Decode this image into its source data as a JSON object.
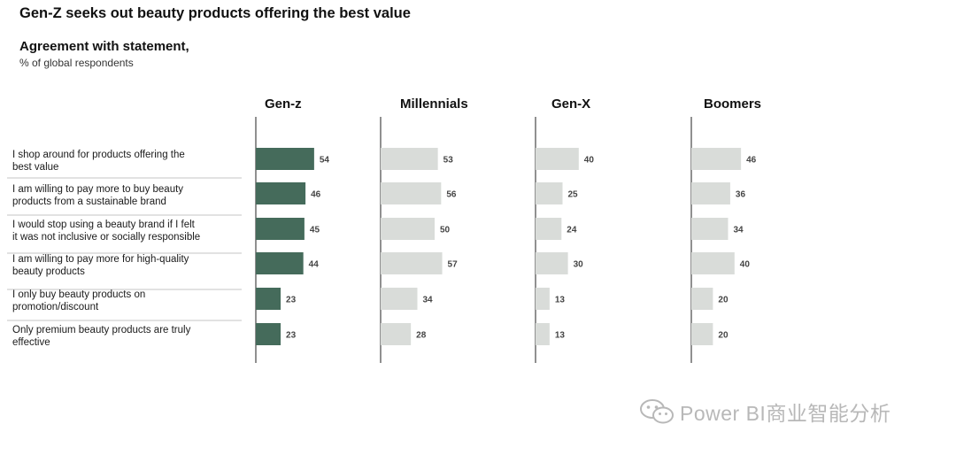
{
  "header": {
    "title": "Gen-Z seeks out beauty products offering the best value",
    "subtitle": "Agreement with statement,",
    "unit": "% of global respondents"
  },
  "watermark": {
    "text": "Power BI商业智能分析",
    "icon": "wechat-icon"
  },
  "chart_data": {
    "type": "bar",
    "orientation": "horizontal",
    "categories": [
      "I shop around for products offering the best value",
      "I am willing to pay more to buy beauty products from a sustainable brand",
      "I would stop using a beauty brand if I felt it was not inclusive or socially responsible",
      "I am willing  to pay more for high-quality beauty products",
      "I only buy beauty products on promotion/discount",
      "Only premium beauty products are truly effective"
    ],
    "category_lines": [
      [
        "I shop around for products offering the",
        "best value"
      ],
      [
        "I am willing to pay more to buy beauty",
        "products from a sustainable brand"
      ],
      [
        "I would stop using a beauty brand if I felt",
        "it was not inclusive or socially responsible"
      ],
      [
        "I am willing  to pay more for high-quality",
        "beauty products"
      ],
      [
        "I only buy beauty products on",
        "promotion/discount"
      ],
      [
        "Only premium beauty products are truly",
        "effective"
      ]
    ],
    "series": [
      {
        "name": "Gen-z",
        "values": [
          54,
          46,
          45,
          44,
          23,
          23
        ],
        "color": "#456b5b"
      },
      {
        "name": "Millennials",
        "values": [
          53,
          56,
          50,
          57,
          34,
          28
        ],
        "color": "#d9dcd9"
      },
      {
        "name": "Gen-X",
        "values": [
          40,
          25,
          24,
          30,
          13,
          13
        ],
        "color": "#d9dcd9"
      },
      {
        "name": "Boomers",
        "values": [
          46,
          36,
          34,
          40,
          20,
          20
        ],
        "color": "#d9dcd9"
      }
    ],
    "colors": {
      "highlight": "#456b5b",
      "muted": "#d9dcd9",
      "axis": "#222222",
      "divider": "#c4c4c4",
      "value_label": "#444444"
    }
  }
}
